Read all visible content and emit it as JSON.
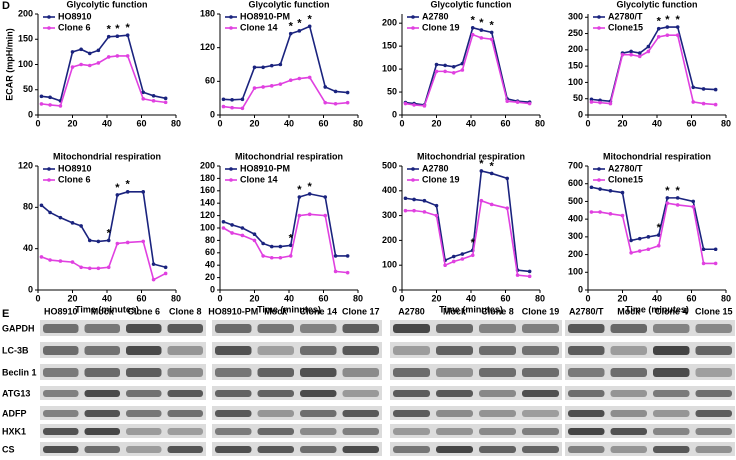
{
  "panel_labels": [
    "D",
    "E"
  ],
  "chart_data": [
    {
      "type": "line",
      "title": "Glycolytic function",
      "y_label": "ECAR (mpH/min)",
      "x": [
        2,
        7,
        13,
        20,
        25,
        30,
        35,
        41,
        46,
        52,
        61,
        67,
        74
      ],
      "xlim": [
        0,
        80
      ],
      "xticks": [
        0,
        20,
        40,
        60,
        80
      ],
      "ylim": [
        0,
        200
      ],
      "yticks": [
        0,
        50,
        100,
        150,
        200
      ],
      "series": [
        {
          "name": "HO8910",
          "color": "#1a237e",
          "values": [
            37,
            35,
            28,
            125,
            130,
            122,
            128,
            155,
            156,
            158,
            45,
            38,
            33
          ]
        },
        {
          "name": "Clone 6",
          "color": "#e040e0",
          "values": [
            22,
            20,
            18,
            95,
            100,
            98,
            103,
            115,
            117,
            117,
            32,
            28,
            25
          ]
        }
      ],
      "annotations": [
        {
          "text": "*",
          "x": 41
        },
        {
          "text": "*",
          "x": 46
        },
        {
          "text": "*",
          "x": 52
        }
      ]
    },
    {
      "type": "line",
      "title": "Glycolytic function",
      "x": [
        2,
        7,
        13,
        20,
        25,
        30,
        35,
        41,
        46,
        52,
        61,
        67,
        74
      ],
      "xlim": [
        0,
        80
      ],
      "xticks": [
        0,
        20,
        40,
        60,
        80
      ],
      "ylim": [
        0,
        180
      ],
      "yticks": [
        0,
        60,
        120,
        180
      ],
      "series": [
        {
          "name": "HO8910-PM",
          "color": "#1a237e",
          "values": [
            28,
            27,
            28,
            85,
            85,
            88,
            90,
            145,
            150,
            158,
            50,
            42,
            40
          ]
        },
        {
          "name": "Clone 14",
          "color": "#e040e0",
          "values": [
            15,
            13,
            12,
            48,
            50,
            52,
            55,
            62,
            65,
            67,
            22,
            20,
            22
          ]
        }
      ],
      "annotations": [
        {
          "text": "*",
          "x": 41
        },
        {
          "text": "*",
          "x": 46
        },
        {
          "text": "*",
          "x": 52
        }
      ]
    },
    {
      "type": "line",
      "title": "Glycolytic function",
      "x": [
        2,
        7,
        13,
        20,
        25,
        30,
        35,
        41,
        46,
        52,
        61,
        67,
        74
      ],
      "xlim": [
        0,
        80
      ],
      "xticks": [
        0,
        20,
        40,
        60,
        80
      ],
      "ylim": [
        0,
        220
      ],
      "yticks": [
        0,
        50,
        100,
        150,
        200
      ],
      "series": [
        {
          "name": "A2780",
          "color": "#1a237e",
          "values": [
            27,
            25,
            22,
            110,
            108,
            105,
            112,
            190,
            185,
            180,
            35,
            30,
            28
          ]
        },
        {
          "name": "Clone 19",
          "color": "#e040e0",
          "values": [
            25,
            22,
            20,
            95,
            95,
            92,
            98,
            175,
            168,
            165,
            30,
            28,
            25
          ]
        }
      ],
      "annotations": [
        {
          "text": "*",
          "x": 41
        },
        {
          "text": "*",
          "x": 46
        },
        {
          "text": "*",
          "x": 52
        }
      ]
    },
    {
      "type": "line",
      "title": "Glycolytic function",
      "x": [
        2,
        7,
        13,
        20,
        25,
        30,
        35,
        41,
        46,
        52,
        61,
        67,
        74
      ],
      "xlim": [
        0,
        80
      ],
      "xticks": [
        0,
        20,
        40,
        60,
        80
      ],
      "ylim": [
        0,
        310
      ],
      "yticks": [
        0,
        50,
        100,
        150,
        200,
        250,
        300
      ],
      "series": [
        {
          "name": "A2780/T",
          "color": "#1a237e",
          "values": [
            48,
            45,
            42,
            190,
            195,
            190,
            210,
            265,
            270,
            270,
            85,
            80,
            78
          ]
        },
        {
          "name": "Clone15",
          "color": "#e040e0",
          "values": [
            40,
            38,
            35,
            185,
            185,
            180,
            195,
            240,
            245,
            245,
            40,
            35,
            32
          ]
        }
      ],
      "annotations": [
        {
          "text": "*",
          "x": 41
        },
        {
          "text": "*",
          "x": 46
        },
        {
          "text": "*",
          "x": 52
        }
      ]
    },
    {
      "type": "line",
      "title": "Mitochondrial respiration",
      "x_label": "Time (minutes)",
      "x": [
        2,
        7,
        13,
        20,
        25,
        30,
        35,
        41,
        46,
        52,
        61,
        67,
        74
      ],
      "xlim": [
        0,
        80
      ],
      "xticks": [
        0,
        20,
        40,
        60,
        80
      ],
      "ylim": [
        0,
        120
      ],
      "yticks": [
        0,
        40,
        80,
        120
      ],
      "series": [
        {
          "name": "HO8910",
          "color": "#1a237e",
          "values": [
            82,
            75,
            70,
            65,
            62,
            48,
            47,
            48,
            92,
            95,
            95,
            25,
            22
          ]
        },
        {
          "name": "Clone 6",
          "color": "#e040e0",
          "values": [
            32,
            29,
            28,
            27,
            22,
            21,
            21,
            22,
            45,
            46,
            47,
            10,
            16
          ]
        }
      ],
      "annotations": [
        {
          "text": "*",
          "x": 41
        },
        {
          "text": "*",
          "x": 46
        },
        {
          "text": "*",
          "x": 52
        }
      ]
    },
    {
      "type": "line",
      "title": "Mitochondrial respiration",
      "x_label": "Time (minutes)",
      "x": [
        2,
        7,
        13,
        20,
        25,
        30,
        35,
        41,
        46,
        52,
        61,
        67,
        74
      ],
      "xlim": [
        0,
        80
      ],
      "xticks": [
        0,
        20,
        40,
        60,
        80
      ],
      "ylim": [
        0,
        200
      ],
      "yticks": [
        0,
        20,
        40,
        60,
        80,
        100,
        120,
        140,
        160,
        180,
        200
      ],
      "series": [
        {
          "name": "HO8910-PM",
          "color": "#1a237e",
          "values": [
            110,
            105,
            100,
            90,
            75,
            70,
            70,
            72,
            150,
            155,
            150,
            55,
            55
          ]
        },
        {
          "name": "Clone 14",
          "color": "#e040e0",
          "values": [
            100,
            92,
            88,
            80,
            55,
            52,
            52,
            55,
            120,
            122,
            120,
            30,
            28
          ]
        }
      ],
      "annotations": [
        {
          "text": "*",
          "x": 41
        },
        {
          "text": "*",
          "x": 46
        },
        {
          "text": "*",
          "x": 52
        }
      ]
    },
    {
      "type": "line",
      "title": "Mitochondrial respiration",
      "x_label": "Time (minutes)",
      "x": [
        2,
        7,
        13,
        20,
        25,
        30,
        35,
        41,
        46,
        52,
        61,
        67,
        74
      ],
      "xlim": [
        0,
        80
      ],
      "xticks": [
        0,
        20,
        40,
        60,
        80
      ],
      "ylim": [
        0,
        500
      ],
      "yticks": [
        0,
        100,
        200,
        300,
        400,
        500
      ],
      "series": [
        {
          "name": "A2780",
          "color": "#1a237e",
          "values": [
            370,
            365,
            360,
            340,
            120,
            135,
            145,
            160,
            480,
            470,
            450,
            80,
            75
          ]
        },
        {
          "name": "Clone 19",
          "color": "#e040e0",
          "values": [
            320,
            320,
            315,
            300,
            100,
            115,
            125,
            140,
            360,
            345,
            330,
            60,
            55
          ]
        }
      ],
      "annotations": [
        {
          "text": "*",
          "x": 41
        },
        {
          "text": "*",
          "x": 46
        },
        {
          "text": "*",
          "x": 52
        }
      ]
    },
    {
      "type": "line",
      "title": "Mitochondrial respiration",
      "x_label": "Time (minutes)",
      "x": [
        2,
        7,
        13,
        20,
        25,
        30,
        35,
        41,
        46,
        52,
        61,
        67,
        74
      ],
      "xlim": [
        0,
        80
      ],
      "xticks": [
        0,
        20,
        40,
        60,
        80
      ],
      "ylim": [
        0,
        700
      ],
      "yticks": [
        0,
        100,
        200,
        300,
        400,
        500,
        600,
        700
      ],
      "series": [
        {
          "name": "A2780/T",
          "color": "#1a237e",
          "values": [
            580,
            570,
            560,
            550,
            280,
            290,
            300,
            310,
            520,
            520,
            500,
            230,
            230
          ]
        },
        {
          "name": "Clone15",
          "color": "#e040e0",
          "values": [
            440,
            440,
            430,
            420,
            210,
            220,
            230,
            250,
            490,
            480,
            470,
            150,
            150
          ]
        }
      ],
      "annotations": [
        {
          "text": "*",
          "x": 41
        },
        {
          "text": "*",
          "x": 46
        },
        {
          "text": "*",
          "x": 52
        }
      ]
    }
  ],
  "blots": {
    "rows": [
      "GAPDH",
      "LC-3B",
      "Beclin 1",
      "ATG13",
      "ADFP",
      "HXK1",
      "CS"
    ],
    "groups": [
      [
        "HO8910",
        "Mock",
        "Clone 6",
        "Clone 8"
      ],
      [
        "HO8910-PM",
        "Mock",
        "Clone 14",
        "Clone 17"
      ],
      [
        "A2780",
        "Mock",
        "Clone 8",
        "Clone 19"
      ],
      [
        "A2780/T",
        "Mock",
        "Clone 4",
        "Clone 15"
      ]
    ]
  }
}
